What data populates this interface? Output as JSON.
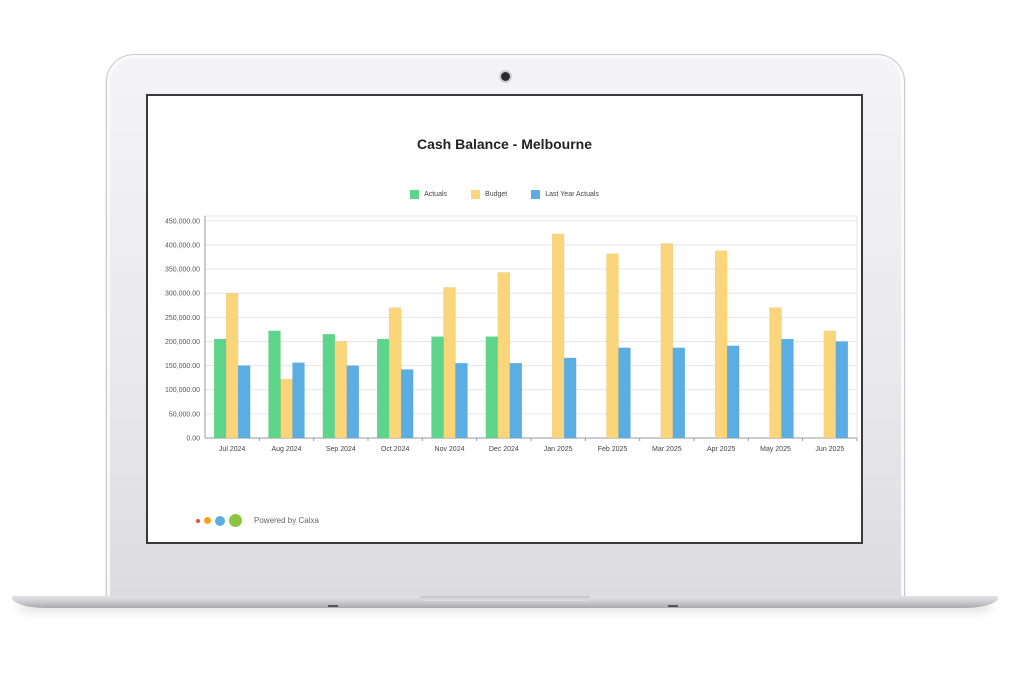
{
  "chart_data": {
    "type": "bar",
    "title": "Cash Balance - Melbourne",
    "categories": [
      "Jul 2024",
      "Aug 2024",
      "Sep 2024",
      "Oct 2024",
      "Nov 2024",
      "Dec 2024",
      "Jan 2025",
      "Feb 2025",
      "Mar 2025",
      "Apr 2025",
      "May 2025",
      "Jun 2025"
    ],
    "series": [
      {
        "name": "Actuals",
        "color": "#5dd68b",
        "values": [
          205000,
          222000,
          215000,
          205000,
          210000,
          210000,
          null,
          null,
          null,
          null,
          null,
          null
        ]
      },
      {
        "name": "Budget",
        "color": "#fbd579",
        "values": [
          300000,
          122000,
          200000,
          270000,
          312000,
          343000,
          423000,
          382000,
          403000,
          388000,
          270000,
          222000
        ]
      },
      {
        "name": "Last Year Actuals",
        "color": "#5aaee3",
        "values": [
          150000,
          156000,
          150000,
          142000,
          155000,
          155000,
          166000,
          187000,
          187000,
          191000,
          205000,
          200000
        ]
      }
    ],
    "y_ticks": [
      "0.00",
      "50,000.00",
      "100,000.00",
      "150,000.00",
      "200,000.00",
      "250,000.00",
      "300,000.00",
      "350,000.00",
      "400,000.00",
      "450,000.00"
    ],
    "ylim": [
      0,
      460000
    ],
    "xlabel": "",
    "ylabel": "",
    "grid": true,
    "legend_position": "top-center"
  },
  "footer": {
    "powered_by": "Powered by Calxa",
    "logo_colors": [
      "#ef4a3e",
      "#f7a21b",
      "#5aaee3",
      "#8cc63f"
    ]
  }
}
